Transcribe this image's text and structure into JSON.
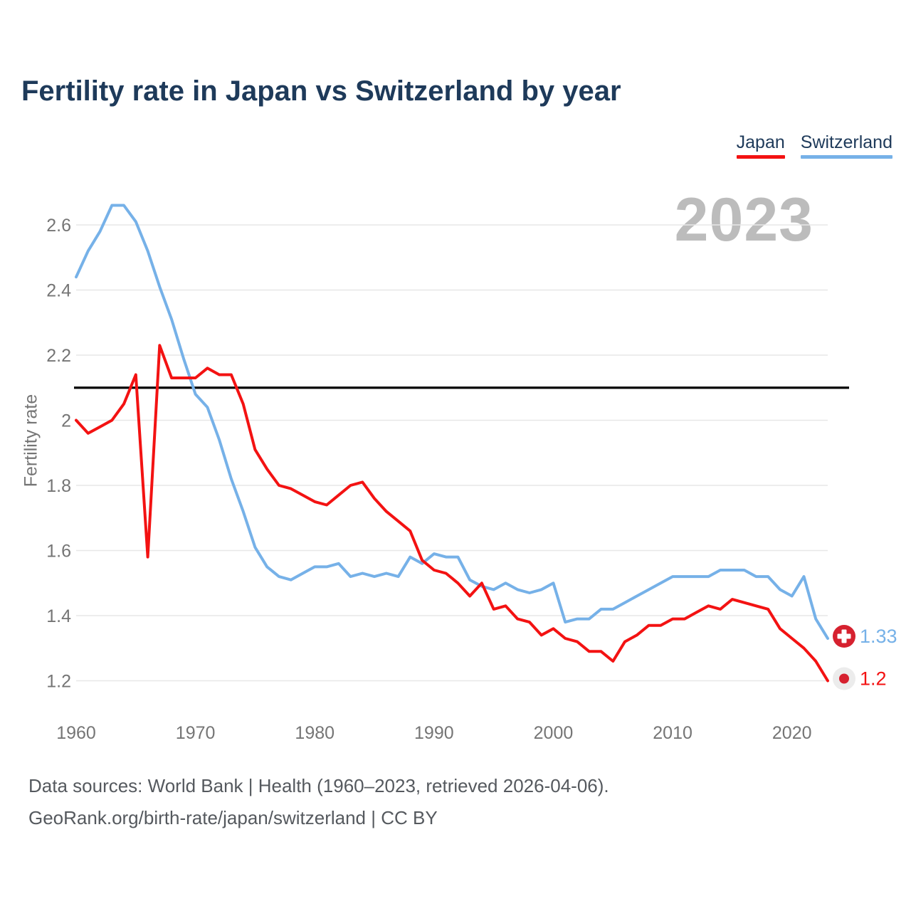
{
  "title": "Fertility rate in Japan vs Switzerland by year",
  "watermark": "2023",
  "legend": {
    "items": [
      {
        "label": "Japan",
        "color": "#f31212"
      },
      {
        "label": "Switzerland",
        "color": "#76b1e8"
      }
    ]
  },
  "footer": {
    "line1": "Data sources: World Bank | Health (1960–2023, retrieved 2026-04-06).",
    "line2": "GeoRank.org/birth-rate/japan/switzerland | CC BY"
  },
  "colors": {
    "japan_line": "#f31212",
    "switzerland_line": "#76b1e8",
    "flag_red": "#d6212f",
    "japan_flag_bg": "#ececec",
    "grid": "#e7e7e7",
    "axis_text": "#757575",
    "reference_line": "#000000",
    "title_text": "#1e3a5a",
    "watermark_text": "#bcbcbc"
  },
  "chart_data": {
    "type": "line",
    "title": "Fertility rate in Japan vs Switzerland by year",
    "xlabel": "",
    "ylabel": "Fertility rate",
    "legend_position": "top-right",
    "grid": "horizontal",
    "ylim": [
      1.1,
      2.72
    ],
    "xlim": [
      1960,
      2023
    ],
    "yticks": [
      2.6,
      2.4,
      2.2,
      2.0,
      1.8,
      1.6,
      1.4,
      1.2
    ],
    "ytick_labels": [
      "2.6",
      "2.4",
      "2.2",
      "2",
      "1.8",
      "1.6",
      "1.4",
      "1.2"
    ],
    "xticks": [
      1960,
      1970,
      1980,
      1990,
      2000,
      2010,
      2020
    ],
    "xtick_labels": [
      "1960",
      "1970",
      "1980",
      "1990",
      "2000",
      "2010",
      "2020"
    ],
    "reference_line": {
      "value": 2.1,
      "label": ""
    },
    "x": [
      1960,
      1961,
      1962,
      1963,
      1964,
      1965,
      1966,
      1967,
      1968,
      1969,
      1970,
      1971,
      1972,
      1973,
      1974,
      1975,
      1976,
      1977,
      1978,
      1979,
      1980,
      1981,
      1982,
      1983,
      1984,
      1985,
      1986,
      1987,
      1988,
      1989,
      1990,
      1991,
      1992,
      1993,
      1994,
      1995,
      1996,
      1997,
      1998,
      1999,
      2000,
      2001,
      2002,
      2003,
      2004,
      2005,
      2006,
      2007,
      2008,
      2009,
      2010,
      2011,
      2012,
      2013,
      2014,
      2015,
      2016,
      2017,
      2018,
      2019,
      2020,
      2021,
      2022,
      2023
    ],
    "series": [
      {
        "name": "Switzerland",
        "color": "#76b1e8",
        "end_label": "1.33",
        "end_marker": "swiss-flag",
        "values": [
          2.44,
          2.52,
          2.58,
          2.66,
          2.66,
          2.61,
          2.52,
          2.41,
          2.31,
          2.19,
          2.08,
          2.04,
          1.94,
          1.82,
          1.72,
          1.61,
          1.55,
          1.52,
          1.51,
          1.53,
          1.55,
          1.55,
          1.56,
          1.52,
          1.53,
          1.52,
          1.53,
          1.52,
          1.58,
          1.56,
          1.59,
          1.58,
          1.58,
          1.51,
          1.49,
          1.48,
          1.5,
          1.48,
          1.47,
          1.48,
          1.5,
          1.38,
          1.39,
          1.39,
          1.42,
          1.42,
          1.44,
          1.46,
          1.48,
          1.5,
          1.52,
          1.52,
          1.52,
          1.52,
          1.54,
          1.54,
          1.54,
          1.52,
          1.52,
          1.48,
          1.46,
          1.52,
          1.39,
          1.33
        ]
      },
      {
        "name": "Japan",
        "color": "#f31212",
        "end_label": "1.2",
        "end_marker": "japan-flag",
        "values": [
          2.0,
          1.96,
          1.98,
          2.0,
          2.05,
          2.14,
          1.58,
          2.23,
          2.13,
          2.13,
          2.13,
          2.16,
          2.14,
          2.14,
          2.05,
          1.91,
          1.85,
          1.8,
          1.79,
          1.77,
          1.75,
          1.74,
          1.77,
          1.8,
          1.81,
          1.76,
          1.72,
          1.69,
          1.66,
          1.57,
          1.54,
          1.53,
          1.5,
          1.46,
          1.5,
          1.42,
          1.43,
          1.39,
          1.38,
          1.34,
          1.36,
          1.33,
          1.32,
          1.29,
          1.29,
          1.26,
          1.32,
          1.34,
          1.37,
          1.37,
          1.39,
          1.39,
          1.41,
          1.43,
          1.42,
          1.45,
          1.44,
          1.43,
          1.42,
          1.36,
          1.33,
          1.3,
          1.26,
          1.2
        ]
      }
    ]
  }
}
